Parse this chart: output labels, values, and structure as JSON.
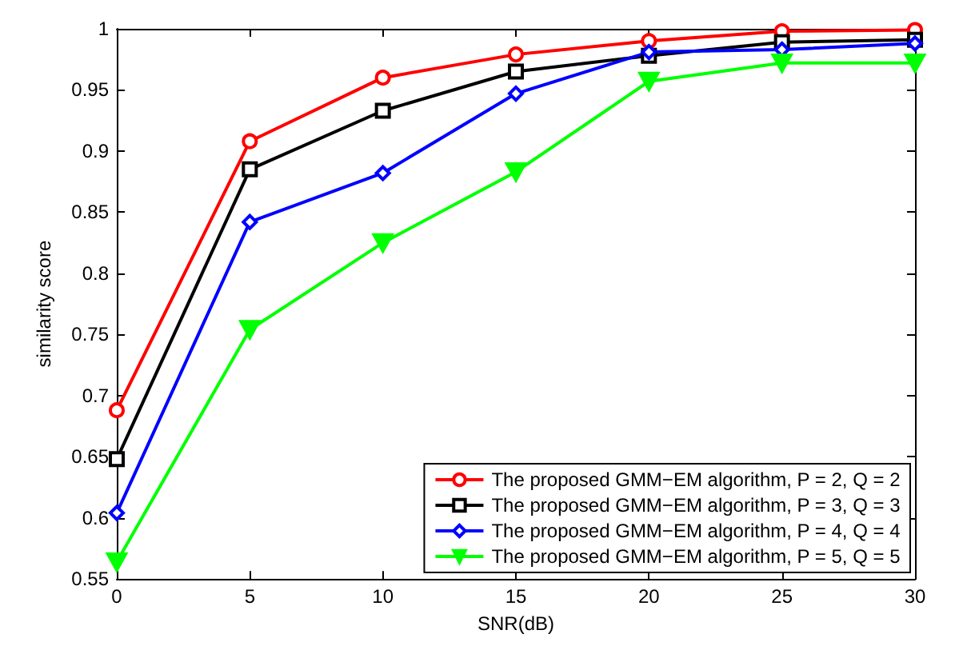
{
  "chart_data": {
    "type": "line",
    "xlabel": "SNR(dB)",
    "ylabel": "similarity score",
    "x": [
      0,
      5,
      10,
      15,
      20,
      25,
      30
    ],
    "series": [
      {
        "name": "The proposed GMM−EM algorithm, P = 2, Q = 2",
        "color": "#ff0000",
        "marker": "circle",
        "values": [
          0.688,
          0.908,
          0.96,
          0.979,
          0.99,
          0.998,
          0.999
        ]
      },
      {
        "name": "The proposed GMM−EM algorithm, P = 3, Q = 3",
        "color": "#000000",
        "marker": "square",
        "values": [
          0.648,
          0.885,
          0.933,
          0.965,
          0.978,
          0.989,
          0.991
        ]
      },
      {
        "name": "The proposed GMM−EM algorithm, P = 4, Q = 4",
        "color": "#0000ff",
        "marker": "diamond",
        "values": [
          0.604,
          0.842,
          0.882,
          0.947,
          0.981,
          0.983,
          0.988
        ]
      },
      {
        "name": "The proposed GMM−EM algorithm, P = 5, Q = 5",
        "color": "#00ff00",
        "marker": "triangle",
        "values": [
          0.564,
          0.754,
          0.825,
          0.883,
          0.957,
          0.972,
          0.972
        ]
      }
    ],
    "xlim": [
      0,
      30
    ],
    "xticks": [
      0,
      5,
      10,
      15,
      20,
      25,
      30
    ],
    "ylim": [
      0.55,
      1
    ],
    "yticks": [
      0.55,
      0.6,
      0.65,
      0.7,
      0.75,
      0.8,
      0.85,
      0.9,
      0.95,
      1
    ],
    "grid": false,
    "legend": "bottom right",
    "line_style": "solid"
  }
}
